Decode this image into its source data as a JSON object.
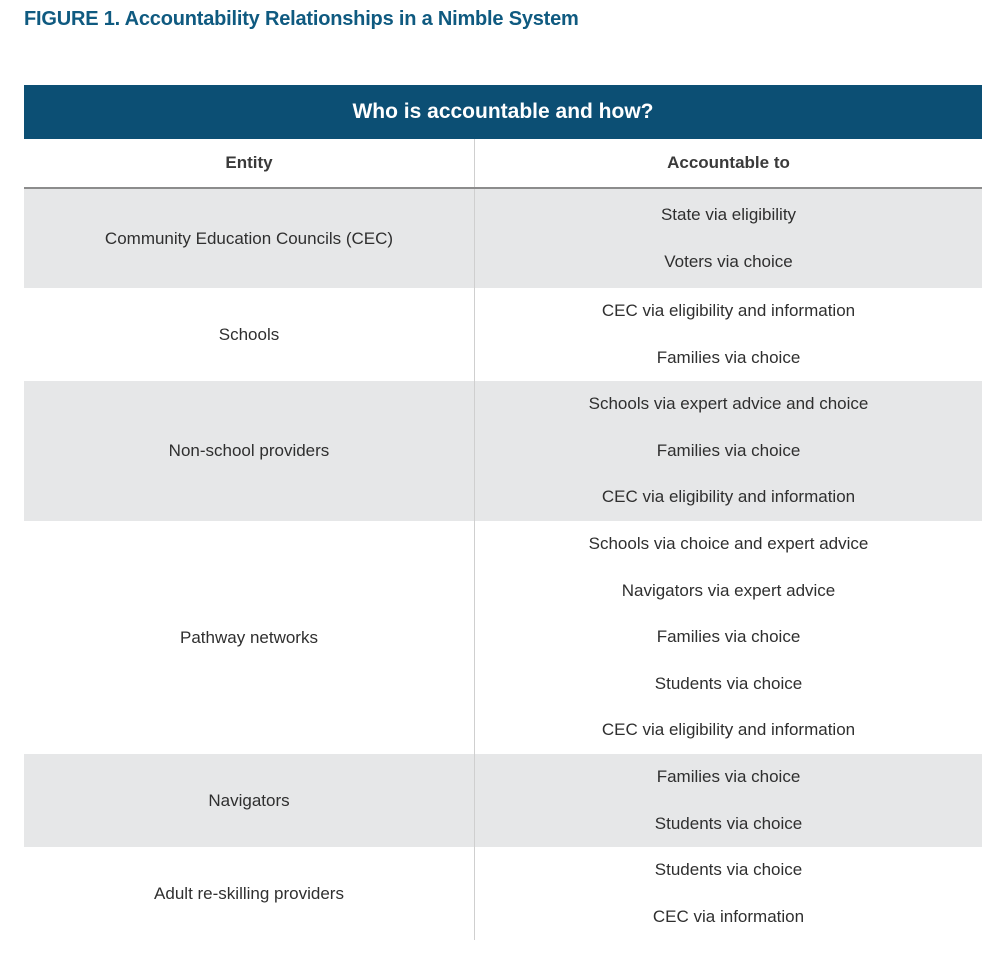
{
  "figure_title": "FIGURE 1. Accountability Relationships in a Nimble System",
  "table": {
    "banner": "Who is accountable and how?",
    "headers": {
      "entity": "Entity",
      "accountable_to": "Accountable to"
    },
    "rows": [
      {
        "entity": "Community Education Councils (CEC)",
        "shaded": true,
        "accountable_to": [
          "State via eligibility",
          "Voters via choice"
        ]
      },
      {
        "entity": "Schools",
        "shaded": false,
        "accountable_to": [
          "CEC via eligibility and information",
          "Families via choice"
        ]
      },
      {
        "entity": "Non-school providers",
        "shaded": true,
        "accountable_to": [
          "Schools via expert advice and choice",
          "Families via choice",
          "CEC via eligibility and information"
        ]
      },
      {
        "entity": "Pathway networks",
        "shaded": false,
        "accountable_to": [
          "Schools via choice and expert advice",
          "Navigators via expert advice",
          "Families via choice",
          "Students via choice",
          "CEC via eligibility and information"
        ]
      },
      {
        "entity": "Navigators",
        "shaded": true,
        "accountable_to": [
          "Families via choice",
          "Students via choice"
        ]
      },
      {
        "entity": "Adult re-skilling providers",
        "shaded": false,
        "accountable_to": [
          "Students via choice",
          "CEC via information"
        ]
      }
    ]
  },
  "colors": {
    "title": "#0f5a80",
    "banner_bg": "#0c4f74",
    "shaded_row": "#e6e7e8"
  }
}
